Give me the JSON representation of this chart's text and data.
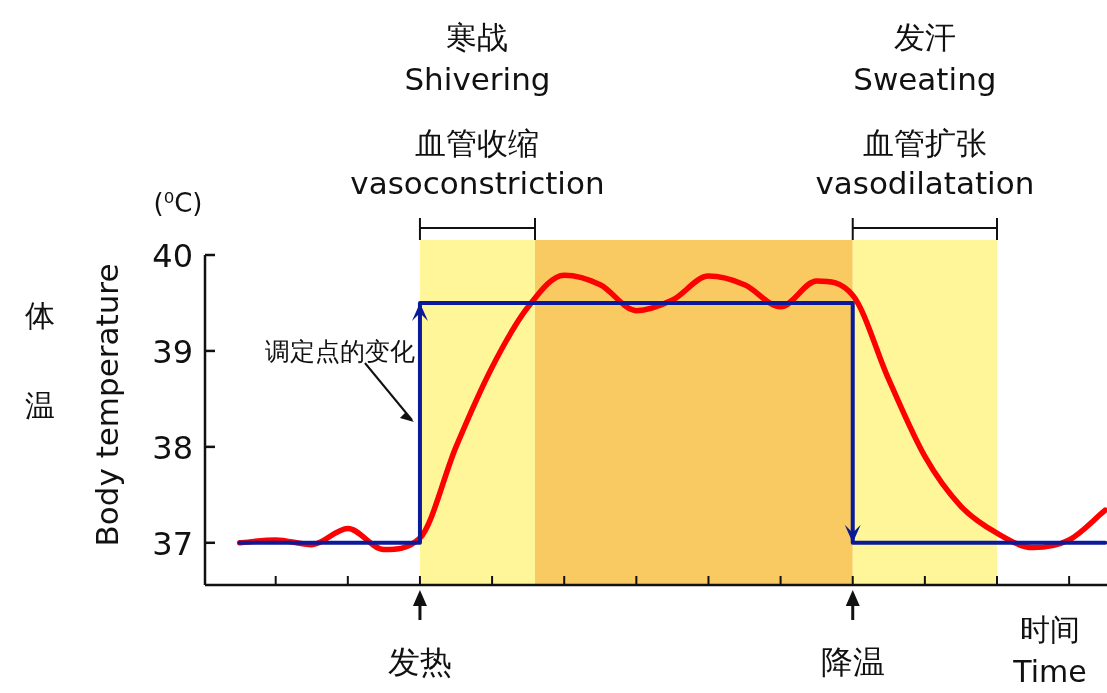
{
  "chart_data": {
    "type": "line",
    "ylabel": "Body temperature",
    "xlabel": "时间\nTime",
    "categories": [
      null,
      null,
      null,
      null,
      null,
      null,
      null,
      null,
      null,
      null,
      null,
      null,
      null,
      null,
      null,
      null,
      null,
      null,
      null,
      null,
      null,
      null,
      null,
      null,
      null
    ],
    "ylim": [
      36.56,
      40
    ],
    "yticks": [
      37,
      38,
      39,
      40
    ],
    "grid": false,
    "marker": "none",
    "series": [
      {
        "type": "line",
        "color": "#ff0000",
        "values": [
          37.0,
          37.03,
          36.98,
          37.15,
          36.93,
          37.05,
          38.0,
          38.83,
          39.46,
          39.79,
          39.69,
          39.42,
          39.53,
          39.78,
          39.69,
          39.46,
          39.73,
          39.58,
          38.7,
          37.9,
          37.38,
          37.1,
          36.95,
          37.03,
          37.34
        ]
      },
      {
        "type": "step",
        "color": "#0a1a9a",
        "values": [
          37,
          37,
          37,
          37,
          37,
          39.5,
          39.5,
          39.5,
          39.5,
          39.5,
          39.5,
          39.5,
          39.5,
          39.5,
          39.5,
          39.5,
          39.5,
          37,
          37,
          37,
          37,
          37,
          37,
          37,
          37
        ]
      }
    ],
    "annotations": [
      "调定点的变化",
      "发热",
      "降温",
      "体温",
      "(⁰C)",
      "寒战",
      "Shivering",
      "血管收缩",
      "vasoconstriction",
      "发汗",
      "Sweating",
      "血管扩张",
      "vasodilatation"
    ]
  }
}
